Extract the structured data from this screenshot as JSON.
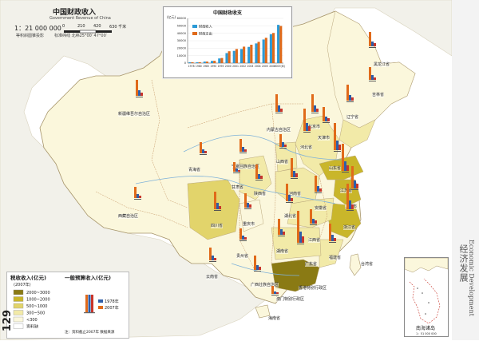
{
  "title": "中国财政收入",
  "subtitle": "Government Revenue of China",
  "scale": {
    "ratio": "1：21 000 000",
    "ticks": [
      "0",
      "210",
      "420",
      "630 千米"
    ],
    "note": "等积斜圆锥投影",
    "params": "标准纬线  北纬25°00′ 47°00′"
  },
  "page_number": "129",
  "side_tab": {
    "zh": "经济发展",
    "en": "Economic Development"
  },
  "colors": {
    "sea": "#ffffff",
    "neighbor": "#f2f1ea",
    "border": "#b9a77c",
    "river": "#7fb2d9",
    "lvl1": "#8a7a14",
    "lvl2": "#c9b62a",
    "lvl3": "#e2d46b",
    "lvl4": "#f2eaa8",
    "lvl5": "#fbf7dc",
    "bar_revenue": "#e06a1a",
    "bar_tax": "#2f5ea8",
    "bar_local": "#c8352b"
  },
  "legend": {
    "title": "税收收入(亿元)",
    "year": "(2007年)",
    "items": [
      {
        "label": "2000~3000",
        "color": "#8a7a14"
      },
      {
        "label": "1000~2000",
        "color": "#c9b62a"
      },
      {
        "label": "500~1000",
        "color": "#e2d46b"
      },
      {
        "label": "300~500",
        "color": "#f2eaa8"
      },
      {
        "label": "<300",
        "color": "#fbf7dc"
      },
      {
        "label": "资料缺",
        "color": "#ffffff"
      }
    ],
    "bar_title": "一般预算收入(亿元)",
    "bar_keys": [
      "1978年",
      "2007年"
    ],
    "footnote": "注：资料截止2007年  数据来源"
  },
  "chart_data": {
    "type": "bar",
    "title": "中国财政收支",
    "ylabel": "(亿元)",
    "categories": [
      "1978",
      "1980",
      "1985",
      "1990",
      "1995",
      "2000",
      "2001",
      "2002",
      "2003",
      "2004",
      "2005",
      "2006",
      "2007(年)"
    ],
    "ylim": [
      0,
      60000
    ],
    "yticks": [
      "60000",
      "50000",
      "40000",
      "30000",
      "20000",
      "10000",
      "0"
    ],
    "series": [
      {
        "name": "财政收入",
        "color": "#2b9ad6",
        "values": [
          1132,
          1160,
          2005,
          2937,
          6242,
          13395,
          16386,
          18904,
          21715,
          26396,
          31649,
          38760,
          51322
        ]
      },
      {
        "name": "财政支出",
        "color": "#e06a1a",
        "values": [
          1122,
          1229,
          2004,
          3084,
          6824,
          15887,
          18903,
          22053,
          24650,
          28487,
          33930,
          40423,
          49781
        ]
      }
    ]
  },
  "scs_inset": {
    "label": "南海诸岛",
    "sub": "1：51 000 000"
  },
  "map_labels": {
    "xinjiang": "新疆维吾尔自治区",
    "tibet": "西藏自治区",
    "qinghai": "青海省",
    "gansu": "甘肃省",
    "innermongolia": "内蒙古自治区",
    "ningxia": "宁夏回族自治区",
    "heilongjiang": "黑龙江省",
    "jilin": "吉林省",
    "liaoning": "辽宁省",
    "beijing": "北京市",
    "tianjin": "天津市",
    "hebei": "河北省",
    "shanxi": "山西省",
    "shandong": "山东省",
    "shaanxi": "陕西省",
    "henan": "河南省",
    "jiangsu": "江苏省",
    "shanghai": "上海市",
    "anhui": "安徽省",
    "hubei": "湖北省",
    "sichuan": "四川省",
    "chongqing": "重庆市",
    "zhejiang": "浙江省",
    "hunan": "湖南省",
    "jiangxi": "江西省",
    "guizhou": "贵州省",
    "fujian": "福建省",
    "yunnan": "云南省",
    "guangxi": "广西壮族自治区",
    "guangdong": "广东省",
    "taiwan": "台湾省",
    "hongkong": "香港特别行政区",
    "macao": "澳门特别行政区",
    "hainan": "海南省"
  }
}
